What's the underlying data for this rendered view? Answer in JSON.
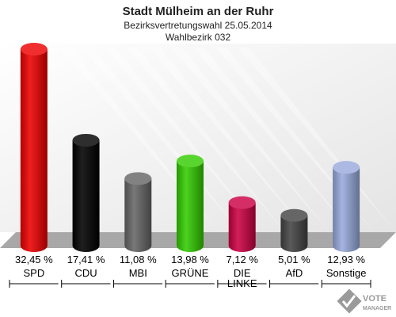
{
  "chart_data": {
    "type": "bar",
    "title": "Stadt Mülheim an der Ruhr",
    "subtitle": [
      "Bezirksvertretungswahl 25.05.2014",
      "Wahlbezirk 032"
    ],
    "categories": [
      "SPD",
      "CDU",
      "MBI",
      "GRÜNE",
      "DIE LINKE",
      "AfD",
      "Sonstige"
    ],
    "category_lines": [
      [
        "SPD"
      ],
      [
        "CDU"
      ],
      [
        "MBI"
      ],
      [
        "GRÜNE"
      ],
      [
        "DIE",
        "LINKE"
      ],
      [
        "AfD"
      ],
      [
        "Sonstige"
      ]
    ],
    "values": [
      32.45,
      17.41,
      11.08,
      13.98,
      7.12,
      5.01,
      12.93
    ],
    "value_labels": [
      "32,45 %",
      "17,41 %",
      "11,08 %",
      "13,98 %",
      "7,12 %",
      "5,01 %",
      "12,93 %"
    ],
    "colors": [
      "#ee0000",
      "#000000",
      "#666666",
      "#33cc00",
      "#cc0044",
      "#444444",
      "#99aadd"
    ],
    "ylim": [
      0,
      32.45
    ],
    "grid": false
  },
  "watermark": {
    "line1": "VOTE",
    "line2": "MANAGER"
  }
}
